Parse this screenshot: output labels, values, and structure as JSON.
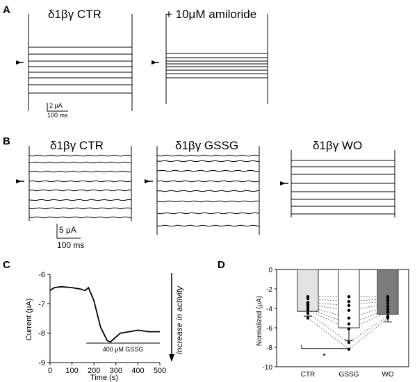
{
  "panels": {
    "a": {
      "label": "A",
      "left_title": "δ1βγ CTR",
      "right_title": "+ 10μM amiloride",
      "scale_current": "2 μA",
      "scale_time": "100 ms"
    },
    "b": {
      "label": "B",
      "titles": [
        "δ1βγ CTR",
        "δ1βγ GSSG",
        "δ1βγ WO"
      ],
      "scale_current": "5 μA",
      "scale_time": "100 ms"
    },
    "c": {
      "label": "C",
      "ylabel": "Current (μA)",
      "xlabel": "Time (s)",
      "yticks": [
        "-6",
        "-7",
        "-8",
        "-9"
      ],
      "xticks": [
        "0",
        "100",
        "200",
        "300",
        "400",
        "500"
      ],
      "bar_label": "400 μM GSSG",
      "arrow_label": "increase in activity"
    },
    "d": {
      "label": "D",
      "ylabel": "Normalized (μA)",
      "yticks": [
        "0",
        "-2",
        "-4",
        "-6",
        "-8",
        "-10"
      ],
      "categories": [
        "CTR",
        "GSSG",
        "WO"
      ],
      "significance": "*"
    }
  },
  "chart_data": [
    {
      "type": "line",
      "panel": "C",
      "xlabel": "Time (s)",
      "ylabel": "Current (μA)",
      "xlim": [
        0,
        500
      ],
      "ylim": [
        -9,
        -6
      ],
      "series": [
        {
          "x": [
            0,
            20,
            50,
            100,
            140,
            160,
            175,
            200,
            230,
            260,
            275,
            290,
            320,
            360,
            400,
            450,
            500
          ],
          "y": [
            -6.55,
            -6.45,
            -6.42,
            -6.45,
            -6.5,
            -6.55,
            -6.45,
            -6.9,
            -7.8,
            -8.25,
            -8.3,
            -8.2,
            -8.0,
            -7.95,
            -7.9,
            -7.95,
            -7.95
          ]
        }
      ],
      "annotations": [
        {
          "text": "400 μM GSSG",
          "x_range": [
            260,
            500
          ]
        }
      ]
    },
    {
      "type": "bar",
      "panel": "D",
      "ylabel": "Normalized (μA)",
      "ylim": [
        -10,
        0
      ],
      "categories": [
        "CTR",
        "GSSG",
        "WO"
      ],
      "values": [
        -4.3,
        -6.0,
        -4.6
      ],
      "errors": [
        0.5,
        1.3,
        0.8
      ],
      "bar_colors": [
        "#e3e3e3",
        "#ffffff",
        "#7b7b7b"
      ],
      "individual_points": [
        [
          -2.8,
          -3.0,
          -3.4,
          -3.6,
          -3.8,
          -4.0,
          -4.2,
          -4.5,
          -5.0
        ],
        [
          -2.8,
          -3.3,
          -3.7,
          -4.2,
          -5.0,
          -5.6,
          -6.1,
          -7.5,
          -8.2
        ],
        [
          -2.8,
          -3.0,
          -3.2,
          -3.5,
          -3.8,
          -4.1,
          -4.4,
          -4.8,
          -5.0
        ]
      ],
      "significance": [
        {
          "between": [
            "CTR",
            "GSSG"
          ],
          "label": "*"
        }
      ]
    }
  ]
}
